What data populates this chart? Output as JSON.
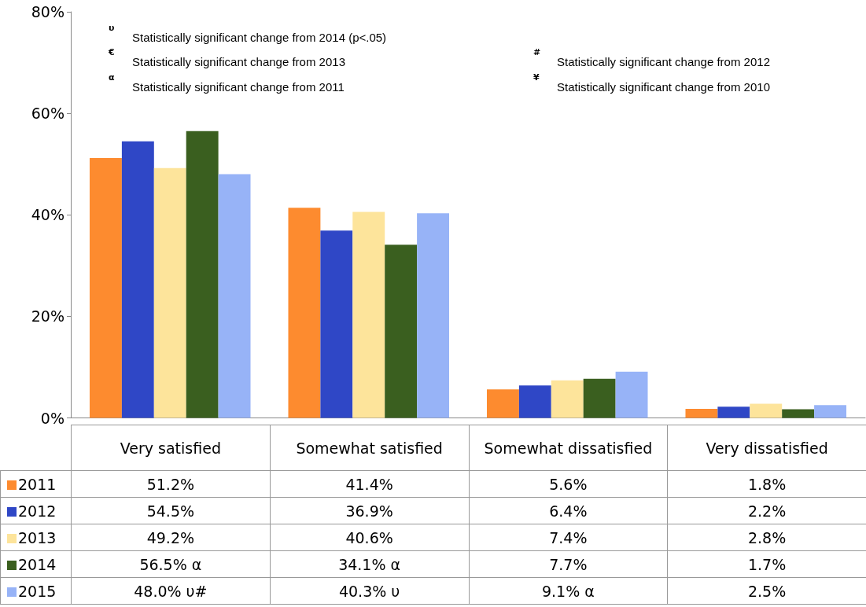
{
  "chart_data": {
    "type": "bar",
    "categories": [
      "Very satisfied",
      "Somewhat satisfied",
      "Somewhat dissatisfied",
      "Very dissatisfied"
    ],
    "series": [
      {
        "name": "2011",
        "color": "#fd8b2f",
        "values": [
          51.2,
          41.4,
          5.6,
          1.8
        ],
        "value_labels": [
          "51.2%",
          "41.4%",
          "5.6%",
          "1.8%"
        ]
      },
      {
        "name": "2012",
        "color": "#2f47c6",
        "values": [
          54.5,
          36.9,
          6.4,
          2.2
        ],
        "value_labels": [
          "54.5%",
          "36.9%",
          "6.4%",
          "2.2%"
        ]
      },
      {
        "name": "2013",
        "color": "#fde49b",
        "values": [
          49.2,
          40.6,
          7.4,
          2.8
        ],
        "value_labels": [
          "49.2%",
          "40.6%",
          "7.4%",
          "2.8%"
        ]
      },
      {
        "name": "2014",
        "color": "#3a5f1f",
        "values": [
          56.5,
          34.1,
          7.7,
          1.7
        ],
        "value_labels": [
          "56.5% α",
          "34.1% α",
          "7.7%",
          "1.7%"
        ]
      },
      {
        "name": "2015",
        "color": "#97b3f7",
        "values": [
          48.0,
          40.3,
          9.1,
          2.5
        ],
        "value_labels": [
          "48.0% υ#",
          "40.3% υ",
          "9.1% α",
          "2.5%"
        ]
      }
    ],
    "ylim": [
      0,
      80
    ],
    "yticks": [
      {
        "value": 0,
        "label": "0%"
      },
      {
        "value": 20,
        "label": "20%"
      },
      {
        "value": 40,
        "label": "40%"
      },
      {
        "value": 60,
        "label": "60%"
      },
      {
        "value": 80,
        "label": "80%"
      }
    ],
    "tick_labels": "y",
    "grid": false,
    "legend": "bottom left",
    "annotations": [
      "υ Statistically significant change from 2014 (p<.05)",
      "€ Statistically significant change from 2013",
      "# Statistically significant change from 2012",
      "α Statistically significant change from 2011",
      "¥ Statistically significant change from 2010"
    ]
  }
}
